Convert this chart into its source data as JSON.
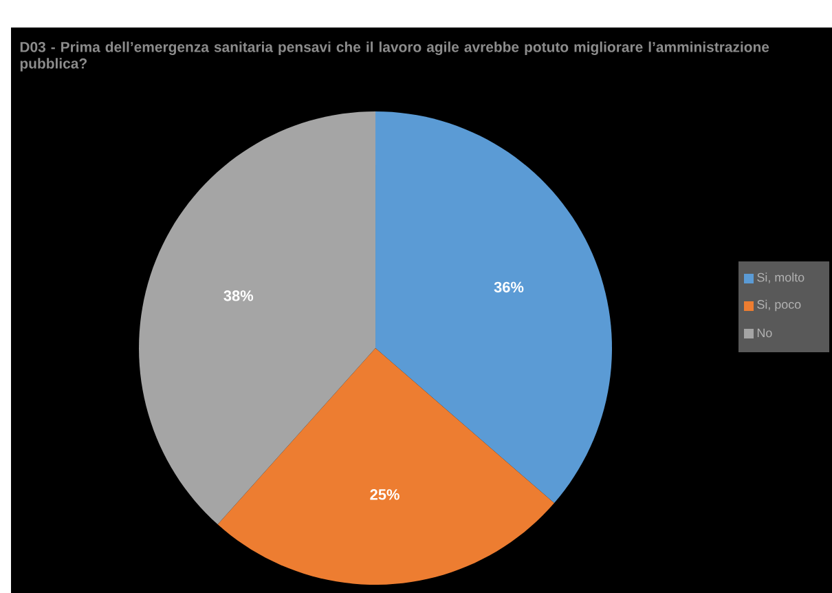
{
  "chart_data": {
    "type": "pie",
    "title": "D03 - Prima dell’emergenza sanitaria pensavi che il lavoro agile avrebbe potuto migliorare l’amministrazione pubblica?",
    "categories": [
      "Si, molto",
      "Si, poco",
      "No"
    ],
    "values": [
      36,
      25,
      38
    ],
    "colors": [
      "#5b9bd5",
      "#ed7d31",
      "#a5a5a5"
    ],
    "value_labels": [
      "36%",
      "25%",
      "38%"
    ],
    "legend": "right"
  }
}
